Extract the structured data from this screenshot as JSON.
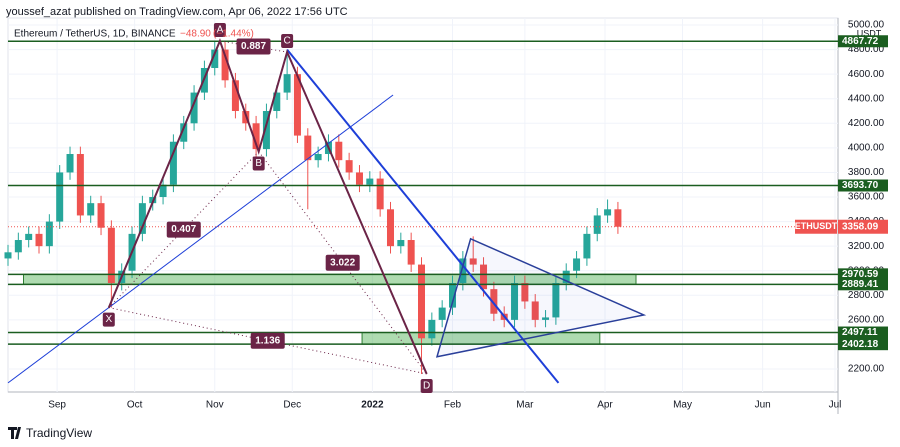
{
  "header": {
    "publisher": "youssef_azat published on TradingView.com, Apr 06, 2022 17:56 UTC",
    "symbol": "Ethereum / TetherUS, 1D, BINANCE",
    "change": "−48.90",
    "change_pct": "(−1.44%)"
  },
  "chart_data": {
    "type": "candlestick",
    "x": [
      0,
      4,
      8,
      12,
      16,
      20,
      24,
      28,
      32,
      36,
      40,
      44,
      48,
      52,
      56,
      60,
      64,
      68,
      72,
      76,
      80,
      84,
      88,
      92,
      96,
      100,
      104,
      108,
      112,
      116,
      120,
      124,
      128,
      132,
      136,
      140,
      144,
      148,
      152,
      156,
      160,
      164,
      168,
      172,
      176,
      180,
      184,
      188,
      192,
      196,
      200,
      204,
      208,
      212,
      216,
      220,
      224,
      228,
      232,
      236
    ],
    "open": [
      3100,
      3150,
      3250,
      3300,
      3200,
      3400,
      3800,
      3950,
      3450,
      3550,
      3350,
      2900,
      3000,
      3300,
      3550,
      3600,
      3700,
      4050,
      4200,
      4450,
      4650,
      4800,
      4550,
      4300,
      4200,
      3990,
      4300,
      4450,
      4600,
      4100,
      3900,
      3950,
      4050,
      3900,
      3800,
      3700,
      3750,
      3500,
      3200,
      3250,
      3050,
      2450,
      2600,
      2700,
      2900,
      3100,
      3050,
      2850,
      2650,
      2600,
      2900,
      2750,
      2600,
      2620,
      2900,
      3000,
      3100,
      3300,
      3450,
      3500
    ],
    "high": [
      3210,
      3310,
      3360,
      3360,
      3460,
      3860,
      4010,
      4010,
      3610,
      3610,
      3410,
      3060,
      3360,
      3610,
      3660,
      3760,
      4110,
      4260,
      4510,
      4710,
      4870,
      4860,
      4610,
      4360,
      4260,
      4360,
      4510,
      4780,
      4660,
      4160,
      4010,
      4110,
      4110,
      3960,
      3860,
      3810,
      3810,
      3560,
      3310,
      3310,
      3110,
      2660,
      2760,
      2960,
      3160,
      3280,
      3110,
      2910,
      2710,
      2960,
      2960,
      2810,
      2680,
      2960,
      3060,
      3160,
      3360,
      3510,
      3580,
      3560
    ],
    "low": [
      3040,
      3090,
      3190,
      3140,
      3140,
      3340,
      3740,
      3390,
      3390,
      3290,
      2700,
      2840,
      2940,
      3240,
      3490,
      3540,
      3640,
      3990,
      4140,
      4390,
      4590,
      4490,
      4240,
      4140,
      3930,
      3930,
      4240,
      4390,
      4040,
      3500,
      3840,
      3890,
      3840,
      3740,
      3640,
      3640,
      3440,
      3140,
      3140,
      2990,
      2160,
      2390,
      2540,
      2640,
      2840,
      2990,
      2790,
      2590,
      2540,
      2540,
      2690,
      2540,
      2540,
      2560,
      2840,
      2940,
      3040,
      3240,
      3390,
      3300
    ],
    "close": [
      3150,
      3250,
      3300,
      3200,
      3400,
      3800,
      3950,
      3450,
      3550,
      3350,
      2900,
      3000,
      3300,
      3550,
      3600,
      3700,
      4050,
      4200,
      4450,
      4650,
      4800,
      4550,
      4300,
      4200,
      3990,
      4300,
      4450,
      4600,
      4100,
      3900,
      3950,
      4050,
      3900,
      3800,
      3700,
      3750,
      3500,
      3200,
      3250,
      3050,
      2450,
      2600,
      2700,
      2900,
      3100,
      3050,
      2850,
      2650,
      2600,
      2900,
      2750,
      2600,
      2620,
      2900,
      3000,
      3100,
      3300,
      3450,
      3500,
      3358.09
    ],
    "up_color": "#26a69a",
    "down_color": "#ef5350",
    "xlim": [
      0,
      320
    ],
    "xticks": [
      {
        "value": 19,
        "label": "Sep"
      },
      {
        "value": 49,
        "label": "Oct"
      },
      {
        "value": 80,
        "label": "Nov"
      },
      {
        "value": 110,
        "label": "Dec"
      },
      {
        "value": 141,
        "label": "2022"
      },
      {
        "value": 172,
        "label": "Feb"
      },
      {
        "value": 200,
        "label": "Mar"
      },
      {
        "value": 231,
        "label": "Apr"
      },
      {
        "value": 261,
        "label": "May"
      },
      {
        "value": 292,
        "label": "Jun"
      },
      {
        "value": 320,
        "label": "Jul"
      }
    ],
    "ylim": [
      2013,
      5057
    ],
    "yticks": [
      {
        "value": 2200,
        "label": "2200.00"
      },
      {
        "value": 2400,
        "label": "2400.00"
      },
      {
        "value": 2600,
        "label": "2600.00"
      },
      {
        "value": 2800,
        "label": "2800.00"
      },
      {
        "value": 3000,
        "label": "3000.00"
      },
      {
        "value": 3200,
        "label": "3200.00"
      },
      {
        "value": 3400,
        "label": "3400.00"
      },
      {
        "value": 3600,
        "label": "3600.00"
      },
      {
        "value": 3800,
        "label": "3800.00"
      },
      {
        "value": 4000,
        "label": "4000.00"
      },
      {
        "value": 4200,
        "label": "4200.00"
      },
      {
        "value": 4400,
        "label": "4400.00"
      },
      {
        "value": 4600,
        "label": "4600.00"
      },
      {
        "value": 4800,
        "label": "4800.00"
      },
      {
        "value": 5000,
        "label": "5000.00"
      }
    ],
    "y_unit": "USDT",
    "grid": true,
    "levels": [
      {
        "value": 4867.72,
        "label": "4867.72"
      },
      {
        "value": 3693.7,
        "label": "3693.70"
      },
      {
        "value": 2970.59,
        "label": "2970.59"
      },
      {
        "value": 2889.41,
        "label": "2889.41"
      },
      {
        "value": 2497.11,
        "label": "2497.11"
      },
      {
        "value": 2402.18,
        "label": "2402.18"
      }
    ],
    "level_color": "#1b5e20",
    "zones": [
      {
        "low": 2889.41,
        "high": 2970.59,
        "x": [
          6,
          243
        ]
      },
      {
        "low": 2402.18,
        "high": 2497.11,
        "x": [
          137,
          229
        ]
      }
    ],
    "last_price": {
      "name": "ETHUSDT",
      "value": 3358.09,
      "label": "3358.09",
      "color": "#ef5350"
    },
    "pattern": {
      "color": "#6b2447",
      "points": [
        {
          "label": "X",
          "x": 39,
          "y": 2700
        },
        {
          "label": "A",
          "x": 82,
          "y": 4870
        },
        {
          "label": "B",
          "x": 97,
          "y": 3970
        },
        {
          "label": "C",
          "x": 108,
          "y": 4780
        },
        {
          "label": "D",
          "x": 162,
          "y": 2160
        }
      ],
      "ratios": [
        {
          "from": "X",
          "to": "B",
          "value": 0.407
        },
        {
          "from": "A",
          "to": "C",
          "value": 0.887
        },
        {
          "from": "B",
          "to": "D",
          "value": 3.022
        },
        {
          "from": "X",
          "to": "D",
          "value": 1.136
        }
      ]
    },
    "trendlines": [
      {
        "x": [
          0,
          149
        ],
        "y": [
          2087,
          4430
        ]
      },
      {
        "x": [
          108,
          213
        ],
        "y": [
          4800,
          2087
        ]
      }
    ],
    "triangle": {
      "x": [
        179,
        246,
        166
      ],
      "y": [
        3260,
        2640,
        2300
      ]
    },
    "line_color": "#1e3fd8"
  },
  "footer": {
    "brand": "TradingView"
  }
}
